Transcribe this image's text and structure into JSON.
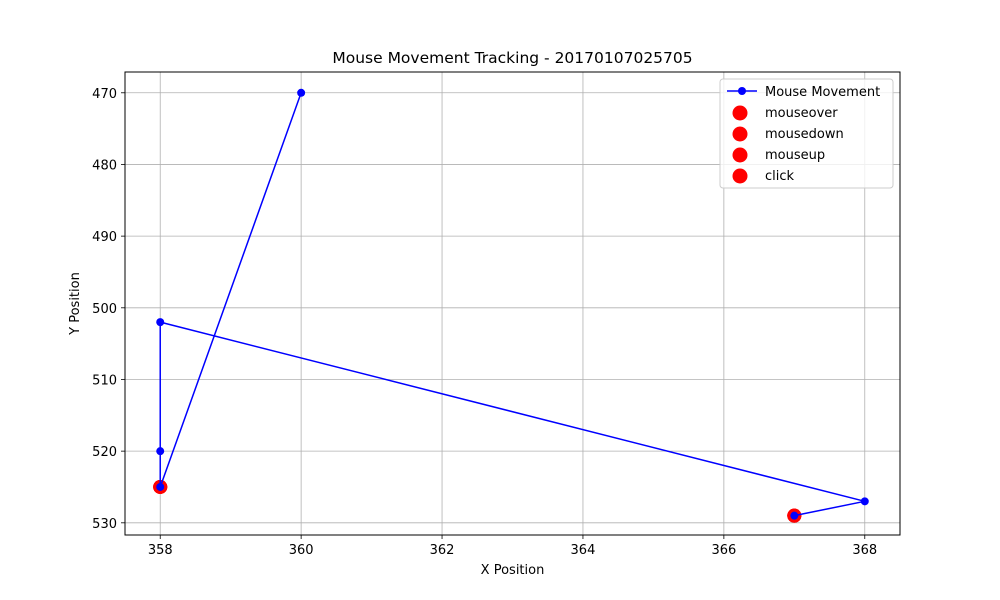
{
  "chart_data": {
    "type": "scatter",
    "title": "Mouse Movement Tracking - 20170107025705",
    "xlabel": "X Position",
    "ylabel": "Y Position",
    "xlim": [
      357.5,
      368.5
    ],
    "ylim": [
      531.7,
      467.1
    ],
    "y_inverted": true,
    "grid": true,
    "legend_position": "top-right",
    "xticks": [
      358,
      360,
      362,
      364,
      366,
      368
    ],
    "yticks": [
      470,
      480,
      490,
      500,
      510,
      520,
      530
    ],
    "series": [
      {
        "name": "Mouse Movement",
        "type": "line",
        "color": "#0000ff",
        "x": [
          360,
          358,
          358,
          358,
          368,
          367
        ],
        "y": [
          470,
          525,
          520,
          502,
          527,
          529
        ]
      },
      {
        "name": "mouseover",
        "type": "scatter",
        "color": "#ff0000",
        "x": [
          358,
          367
        ],
        "y": [
          525,
          529
        ]
      },
      {
        "name": "mousedown",
        "type": "scatter",
        "color": "#ff0000",
        "x": [
          358,
          367
        ],
        "y": [
          525,
          529
        ]
      },
      {
        "name": "mouseup",
        "type": "scatter",
        "color": "#ff0000",
        "x": [
          358,
          367
        ],
        "y": [
          525,
          529
        ]
      },
      {
        "name": "click",
        "type": "scatter",
        "color": "#ff0000",
        "x": [
          358,
          367
        ],
        "y": [
          525,
          529
        ]
      }
    ]
  }
}
